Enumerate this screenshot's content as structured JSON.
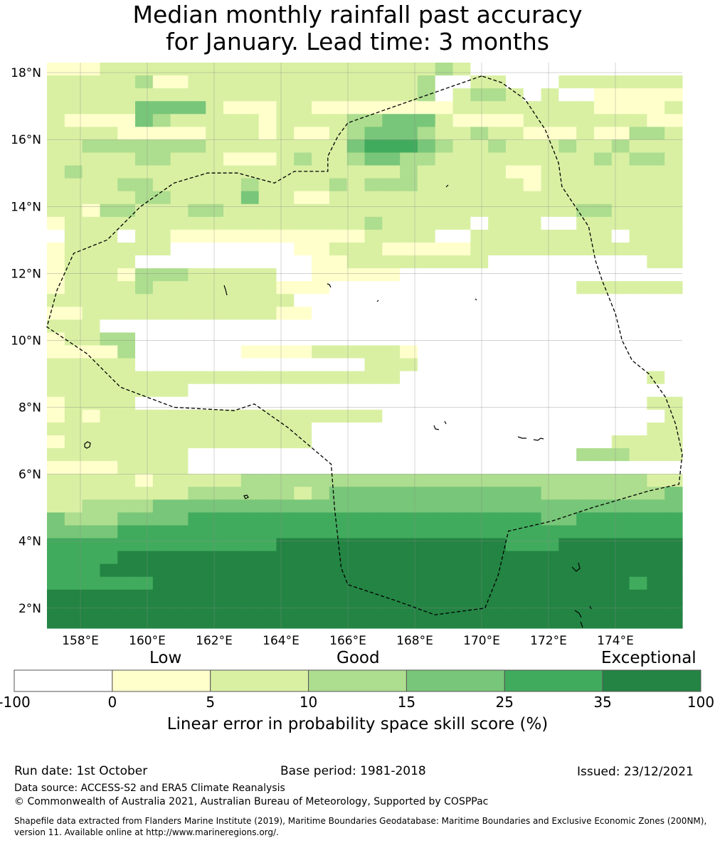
{
  "title": {
    "line1": "Median monthly rainfall past accuracy",
    "line2": "for January. Lead time: 3 months"
  },
  "map": {
    "lat_labels": [
      "18°N",
      "16°N",
      "14°N",
      "12°N",
      "10°N",
      "8°N",
      "6°N",
      "4°N",
      "2°N"
    ],
    "lon_labels": [
      "158°E",
      "160°E",
      "162°E",
      "164°E",
      "166°E",
      "168°E",
      "170°E",
      "172°E",
      "174°E"
    ],
    "lat_values": [
      18,
      16,
      14,
      12,
      10,
      8,
      6,
      4,
      2
    ],
    "lon_values": [
      158,
      160,
      162,
      164,
      166,
      168,
      170,
      172,
      174
    ],
    "extent": {
      "lon_min": 157,
      "lon_max": 176,
      "lat_min": 1.4,
      "lat_max": 18.3
    },
    "grid_rows": [
      "111222222222222222222232000000000000",
      "222223112222222222222300220002222222",
      "222222222222222222222302332020011111",
      "222224444211122111111112222222211112",
      "211114322222122223344421111222222211",
      "222211111222121123444322322111211332",
      "223333333222222224555432232223223222",
      "222223322211123223443322222222232332",
      "232222222222222222223222221122222222",
      "222233222223222232333222222122222222",
      "222223322224221122222222222222222222",
      "221332223322222222222222222222332222",
      "122222222222222222322222022200222222",
      "022202211111111111222200222222220222",
      "122222200000001122211111222222222222",
      "122220000000000112222222200000000022",
      "122213332222200111110000000000000000",
      "122223222222211100000000000000222222",
      "222222222222220000000000000000000000",
      "112222222222211000000000000000000000",
      "222000000000000000000000000000000000",
      "122330000000000000000000000000000000",
      "111130000001111222221000000000000000",
      "222220000000000000222000000000000000",
      "222222222222222222220000000000000020",
      "222222220000000000000000000000000000",
      "122220000000000000000000000000000022",
      "121222222222222222200000000000000002",
      "222222222222222000000000000000000022",
      "122222222222222000000000000000002222",
      "222222220000000000000000000000333222",
      "111122220000000000000000000000000000",
      "222221222223333333333333333333333322",
      "222222223333332344444444444433333334",
      "223333444444444444444444444444444444",
      "433344445555555555555555555544555555",
      "444455555555555555555555555555555555",
      "555555555555566666666666665556666666",
      "555566666666666666666666666666666666",
      "555666666666666666666666666666666666",
      "555555666666666666666666666666666566",
      "666666666666666666666666666666666666",
      "666666666666666666666666666666666666",
      "666666666666666666666666666666666666"
    ],
    "eez_boundary": [
      [
        170,
        17.9
      ],
      [
        168,
        17.2
      ],
      [
        166,
        16.5
      ],
      [
        165.7,
        16.1
      ],
      [
        165.4,
        15.5
      ],
      [
        165.4,
        15.05
      ],
      [
        164.4,
        15.05
      ],
      [
        163.8,
        14.7
      ],
      [
        162.7,
        15.0
      ],
      [
        161.8,
        15.0
      ],
      [
        160.8,
        14.7
      ],
      [
        159.8,
        14.0
      ],
      [
        158.8,
        13.0
      ],
      [
        157.8,
        12.6
      ],
      [
        157.3,
        11.5
      ],
      [
        157.0,
        10.4
      ],
      [
        158.2,
        9.6
      ],
      [
        159.2,
        8.6
      ],
      [
        160.8,
        8.0
      ],
      [
        162.6,
        7.9
      ],
      [
        163.2,
        8.1
      ],
      [
        164.2,
        7.4
      ],
      [
        165.5,
        6.3
      ],
      [
        165.6,
        5.0
      ],
      [
        165.8,
        3.2
      ],
      [
        166.0,
        2.7
      ],
      [
        167.5,
        2.2
      ],
      [
        168.6,
        1.8
      ],
      [
        170.1,
        2.0
      ],
      [
        170.5,
        3.0
      ],
      [
        170.8,
        4.3
      ],
      [
        172.1,
        4.6
      ],
      [
        173.3,
        5.0
      ],
      [
        175.0,
        5.5
      ],
      [
        175.9,
        5.7
      ],
      [
        176.0,
        6.6
      ],
      [
        175.8,
        7.5
      ],
      [
        175.5,
        8.3
      ],
      [
        175.0,
        9.0
      ],
      [
        174.5,
        9.4
      ],
      [
        174.2,
        10.0
      ],
      [
        174.0,
        10.8
      ],
      [
        173.6,
        11.8
      ],
      [
        173.4,
        12.4
      ],
      [
        173.2,
        13.4
      ],
      [
        172.8,
        14.0
      ],
      [
        172.4,
        14.6
      ],
      [
        172.3,
        15.3
      ],
      [
        171.9,
        16.3
      ],
      [
        171.3,
        17.2
      ],
      [
        170.6,
        17.7
      ],
      [
        170,
        17.9
      ]
    ]
  },
  "colorbar": {
    "category_labels": [
      "Low",
      "Good",
      "Exceptional"
    ],
    "tick_labels": [
      "-100",
      "0",
      "5",
      "10",
      "15",
      "25",
      "35",
      "100"
    ],
    "colors": [
      "#ffffff",
      "#ffffcc",
      "#d9f0a3",
      "#addd8e",
      "#78c679",
      "#41ab5d",
      "#238443"
    ],
    "title": "Linear error in probability space skill score (%)"
  },
  "footer": {
    "run_date": "Run date: 1st October",
    "base_period": "Base period: 1981-2018",
    "issued": "Issued: 23/12/2021",
    "data_source": "Data source: ACCESS-S2 and ERA5 Climate Reanalysis",
    "copyright": "© Commonwealth of Australia 2021, Australian Bureau of Meteorology, Supported by COSPPac",
    "shapefile_line1": "Shapefile data extracted from Flanders Marine Institute (2019), Maritime Boundaries Geodatabase: Maritime Boundaries and Exclusive Economic Zones (200NM),",
    "shapefile_line2": "version 11. Available online at http://www.marineregions.org/."
  }
}
